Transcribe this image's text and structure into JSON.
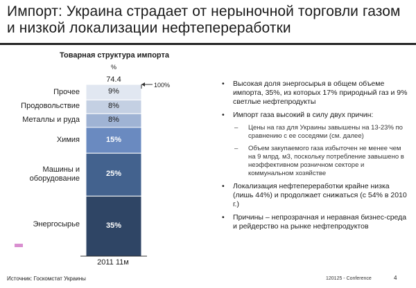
{
  "title": "Импорт: Украина страдает от нерыночной торговли газом и низкой локализации нефтепереработки",
  "chart_data": {
    "type": "bar",
    "title": "Товарная структура импорта",
    "unit": "%",
    "total": "74.4",
    "reference_label": "100%",
    "categories": [
      "2011 11м"
    ],
    "series": [
      {
        "name": "Энергосырье",
        "value": 35,
        "label": "35%",
        "color": "#2f4565"
      },
      {
        "name": "Машины и оборудование",
        "value": 25,
        "label": "25%",
        "color": "#43628e"
      },
      {
        "name": "Химия",
        "value": 15,
        "label": "15%",
        "color": "#6a8ac0"
      },
      {
        "name": "Металлы и руда",
        "value": 8,
        "label": "8%",
        "color": "#9fb3d4"
      },
      {
        "name": "Продовольствие",
        "value": 8,
        "label": "8%",
        "color": "#c4d0e3"
      },
      {
        "name": "Прочее",
        "value": 9,
        "label": "9%",
        "color": "#e1e7f1"
      }
    ],
    "ylim": [
      0,
      100
    ]
  },
  "labels": {
    "energy": "Энергосырье",
    "machines_1": "Машины и",
    "machines_2": "оборудование",
    "chemistry": "Химия",
    "metals": "Металлы и руда",
    "food": "Продовольствие",
    "other": "Прочее"
  },
  "bullets": [
    {
      "text": "Высокая доля энергосырья в общем объеме импорта, 35%, из которых 17% природный газ и 9% светлые нефтепродукты"
    },
    {
      "text": "Импорт газа высокий в силу двух причин:"
    },
    {
      "text": "Цены на газ для Украины завышены на 13-23% по сравнению с ее соседями (см. далее)"
    },
    {
      "text": "Объем закупаемого газа избыточен не менее чем на 9 млрд. м3, поскольку потребление завышено в неэффективном розничном секторе и коммунальном хозяйстве"
    },
    {
      "text": "Локализация нефтепереработки крайне низка (лишь 44%) и продолжает снижаться (с 54% в 2010 г.)"
    },
    {
      "text": "Причины – непрозрачная и неравная бизнес-среда и рейдерство на рынке нефтепродуктов"
    }
  ],
  "bullet_symbol": "•",
  "dash_symbol": "–",
  "footer": {
    "source": "Источник: Госкомстат Украины",
    "conference": "120125 - Conference",
    "page": "4"
  },
  "legend_color": "#d98fd0"
}
